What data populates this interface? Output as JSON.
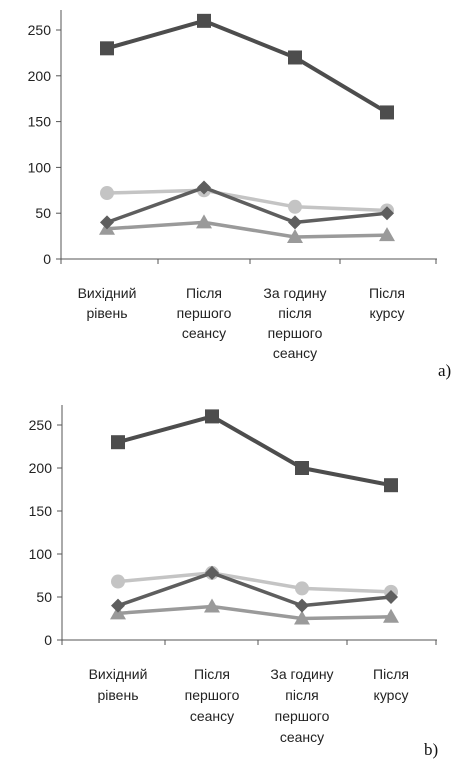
{
  "colors": {
    "series_dark_square": "#4d4d4d",
    "series_light_circle": "#c4c4c4",
    "series_dark_diamond": "#5e5e5e",
    "series_gray_triangle": "#9a9a9a",
    "axis": "#555555"
  },
  "chart_data": [
    {
      "type": "line",
      "panel_label": "a)",
      "categories": [
        [
          "Вихідний",
          "рівень"
        ],
        [
          "Після",
          "першого",
          "сеансу"
        ],
        [
          "За годину",
          "після",
          "першого",
          "сеансу"
        ],
        [
          "Після",
          "курсу"
        ]
      ],
      "ylim": [
        0,
        250
      ],
      "yticks": [
        0,
        50,
        100,
        150,
        200,
        250
      ],
      "grid": false,
      "series": [
        {
          "marker": "square",
          "values": [
            230,
            260,
            220,
            160
          ]
        },
        {
          "marker": "circle",
          "values": [
            72,
            75,
            57,
            53
          ]
        },
        {
          "marker": "diamond",
          "values": [
            40,
            78,
            40,
            50
          ]
        },
        {
          "marker": "triangle",
          "values": [
            33,
            40,
            24,
            26
          ]
        }
      ]
    },
    {
      "type": "line",
      "panel_label": "b)",
      "categories": [
        [
          "Вихідний",
          "рівень"
        ],
        [
          "Після",
          "першого",
          "сеансу"
        ],
        [
          "За годину",
          "після",
          "першого",
          "сеансу"
        ],
        [
          "Після",
          "курсу"
        ]
      ],
      "ylim": [
        0,
        250
      ],
      "yticks": [
        0,
        50,
        100,
        150,
        200,
        250
      ],
      "grid": false,
      "series": [
        {
          "marker": "square",
          "values": [
            230,
            260,
            200,
            180
          ]
        },
        {
          "marker": "circle",
          "values": [
            68,
            78,
            60,
            56
          ]
        },
        {
          "marker": "diamond",
          "values": [
            40,
            78,
            40,
            50
          ]
        },
        {
          "marker": "triangle",
          "values": [
            31,
            39,
            25,
            27
          ]
        }
      ]
    }
  ]
}
